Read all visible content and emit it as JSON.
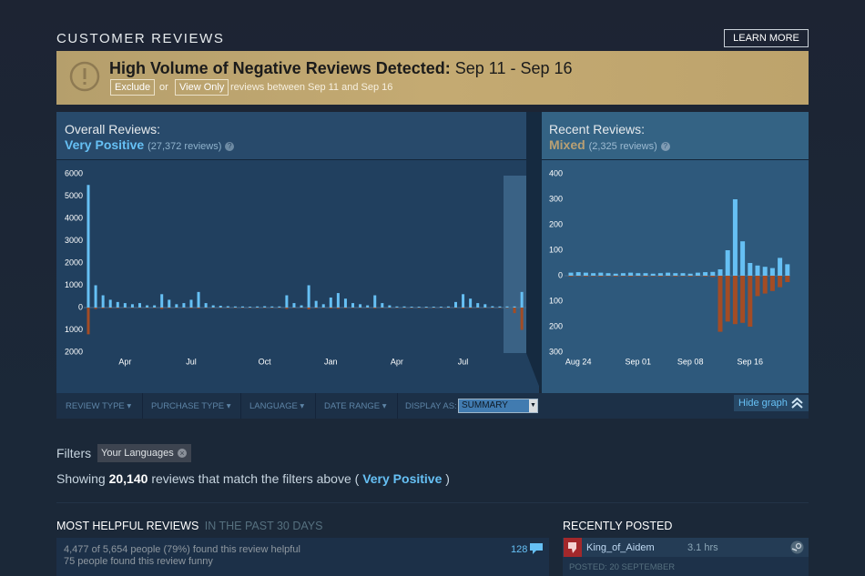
{
  "header": {
    "title": "CUSTOMER REVIEWS",
    "learn_more": "LEARN MORE"
  },
  "banner": {
    "title": "High Volume of Negative Reviews Detected:",
    "dates": "Sep 11 - Sep 16",
    "exclude": "Exclude",
    "or": "or",
    "view_only": "View Only",
    "note": "reviews between Sep 11 and Sep 16"
  },
  "overall": {
    "label": "Overall Reviews:",
    "rating": "Very Positive",
    "count": "(27,372 reviews)",
    "help": "?"
  },
  "recent": {
    "label": "Recent Reviews:",
    "rating": "Mixed",
    "count": "(2,325 reviews)",
    "help": "?"
  },
  "chart_data": [
    {
      "type": "bar",
      "ylim": [
        6000,
        -2000
      ],
      "yticks": [
        6000,
        5000,
        4000,
        3000,
        2000,
        1000,
        0,
        {
          "value": -1000,
          "label": "1000"
        },
        {
          "value": -2000,
          "label": "2000"
        }
      ],
      "categories": [
        null,
        null,
        null,
        null,
        null,
        "Apr",
        null,
        null,
        null,
        null,
        null,
        null,
        null,
        null,
        "Jul",
        null,
        null,
        null,
        null,
        null,
        null,
        null,
        null,
        null,
        "Oct",
        null,
        null,
        null,
        null,
        null,
        null,
        null,
        null,
        "Jan",
        null,
        null,
        null,
        null,
        null,
        null,
        null,
        null,
        "Apr",
        null,
        null,
        null,
        null,
        null,
        null,
        null,
        null,
        "Jul",
        null,
        null,
        null,
        null,
        null,
        null,
        null,
        null
      ],
      "series": [
        {
          "color": "#66c0f4",
          "values": [
            5500,
            1000,
            550,
            350,
            250,
            200,
            150,
            200,
            100,
            100,
            600,
            350,
            150,
            200,
            350,
            700,
            200,
            100,
            80,
            60,
            50,
            50,
            40,
            50,
            60,
            50,
            50,
            550,
            200,
            100,
            1000,
            300,
            150,
            450,
            650,
            400,
            200,
            150,
            100,
            550,
            200,
            100,
            50,
            50,
            40,
            40,
            40,
            40,
            40,
            50,
            250,
            600,
            400,
            200,
            150,
            60,
            50,
            50,
            50,
            700
          ]
        },
        {
          "color": "#a34c25",
          "values": [
            -1200,
            -60,
            -40,
            -30,
            -30,
            -20,
            -20,
            -20,
            -20,
            -20,
            -60,
            -30,
            -20,
            -20,
            -30,
            -40,
            -20,
            -20,
            -20,
            -20,
            -20,
            -20,
            -20,
            -20,
            -20,
            -20,
            -20,
            -60,
            -20,
            -20,
            -80,
            -30,
            -20,
            -40,
            -50,
            -30,
            -20,
            -20,
            -20,
            -40,
            -20,
            -20,
            -20,
            -20,
            -20,
            -20,
            -20,
            -20,
            -20,
            -20,
            -20,
            -40,
            -30,
            -20,
            -20,
            -20,
            -20,
            -20,
            -250,
            -1000
          ]
        }
      ]
    },
    {
      "type": "bar",
      "ylim": [
        400,
        -300
      ],
      "yticks": [
        400,
        300,
        200,
        100,
        0,
        {
          "value": -100,
          "label": "100"
        },
        {
          "value": -200,
          "label": "200"
        },
        {
          "value": -300,
          "label": "300"
        }
      ],
      "categories": [
        null,
        "Aug 24",
        null,
        null,
        null,
        null,
        null,
        null,
        null,
        "Sep 01",
        null,
        null,
        null,
        null,
        null,
        null,
        "Sep 08",
        null,
        null,
        null,
        null,
        null,
        null,
        null,
        "Sep 16",
        null,
        null,
        null,
        null,
        null
      ],
      "series": [
        {
          "color": "#66c0f4",
          "values": [
            12,
            14,
            12,
            10,
            12,
            10,
            8,
            10,
            12,
            10,
            10,
            8,
            10,
            12,
            10,
            10,
            8,
            12,
            14,
            15,
            25,
            100,
            300,
            135,
            50,
            40,
            35,
            30,
            70,
            45
          ]
        },
        {
          "color": "#a34c25",
          "values": [
            -3,
            -2,
            -3,
            -2,
            -3,
            -2,
            -3,
            -2,
            -3,
            -2,
            -3,
            -2,
            -3,
            -2,
            -3,
            -2,
            -3,
            -2,
            -3,
            -5,
            -220,
            -180,
            -190,
            -185,
            -200,
            -80,
            -70,
            -60,
            -45,
            -25
          ]
        }
      ]
    }
  ],
  "filter_bar": {
    "menus": [
      "REVIEW TYPE",
      "PURCHASE TYPE",
      "LANGUAGE",
      "DATE RANGE"
    ],
    "display_as": "DISPLAY AS:",
    "display_value": "SUMMARY",
    "hide_graph": "Hide graph"
  },
  "filters": {
    "label": "Filters",
    "tag": "Your Languages"
  },
  "summary": {
    "prefix": "Showing",
    "count": "20,140",
    "middle": "reviews that match the filters above (",
    "rating": "Very Positive",
    "suffix": ")"
  },
  "helpful": {
    "title": "MOST HELPFUL REVIEWS",
    "period": "IN THE PAST 30 DAYS",
    "helpful_text": "4,477 of 5,654 people (79%) found this review helpful",
    "funny_text": "75 people found this review funny",
    "comments": "128"
  },
  "recently_posted": {
    "title": "RECENTLY POSTED",
    "author": "King_of_Aidem",
    "hours": "3.1 hrs",
    "posted": "POSTED: 20 SEPTEMBER"
  }
}
